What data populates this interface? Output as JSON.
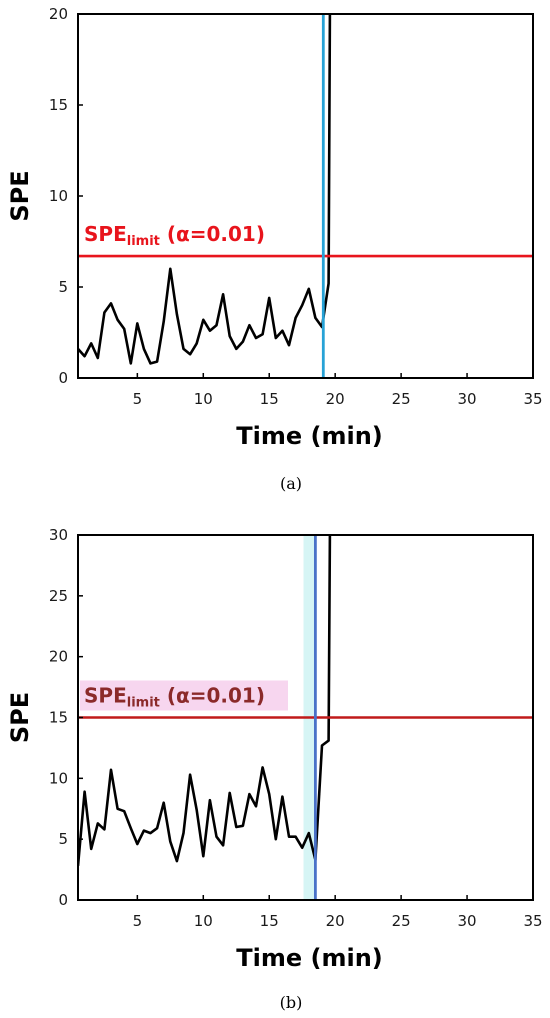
{
  "chart_data": [
    {
      "type": "line",
      "panel_label": "(a)",
      "xlabel": "Time  (min)",
      "ylabel": "SPE",
      "xlim": [
        0.5,
        35
      ],
      "ylim": [
        0,
        20
      ],
      "xticks": [
        5,
        10,
        15,
        20,
        25,
        30,
        35
      ],
      "yticks": [
        0,
        5,
        10,
        15,
        20
      ],
      "limit": {
        "value": 6.7,
        "label_main": "SPE",
        "label_sub": "limit",
        "label_suffix": " (α=0.01)",
        "color": "#e8141c",
        "label_color": "#e8141c",
        "highlight": ""
      },
      "fault_time": {
        "x": 19.1,
        "color": "#27a2d6",
        "band": null
      },
      "series": [
        {
          "color": "#000000",
          "x": [
            0.5,
            1.0,
            1.5,
            2.0,
            2.5,
            3.0,
            3.5,
            4.0,
            4.5,
            5.0,
            5.5,
            6.0,
            6.5,
            7.0,
            7.5,
            8.0,
            8.5,
            9.0,
            9.5,
            10.0,
            10.5,
            11.0,
            11.5,
            12.0,
            12.5,
            13.0,
            13.5,
            14.0,
            14.5,
            15.0,
            15.5,
            16.0,
            16.5,
            17.0,
            17.5,
            18.0,
            18.5,
            19.0,
            19.5,
            19.6
          ],
          "y": [
            1.6,
            1.2,
            1.9,
            1.1,
            3.6,
            4.1,
            3.2,
            2.7,
            0.8,
            3.0,
            1.6,
            0.8,
            0.9,
            3.1,
            6.0,
            3.5,
            1.6,
            1.3,
            1.9,
            3.2,
            2.6,
            2.9,
            4.6,
            2.3,
            1.6,
            2.0,
            2.9,
            2.2,
            2.4,
            4.4,
            2.2,
            2.6,
            1.8,
            3.3,
            4.0,
            4.9,
            3.3,
            2.8,
            5.2,
            20
          ]
        }
      ]
    },
    {
      "type": "line",
      "panel_label": "(b)",
      "xlabel": "Time  (min)",
      "ylabel": "SPE",
      "xlim": [
        0.5,
        35
      ],
      "ylim": [
        0,
        30
      ],
      "xticks": [
        5,
        10,
        15,
        20,
        25,
        30,
        35
      ],
      "yticks": [
        0,
        5,
        10,
        15,
        20,
        25,
        30
      ],
      "limit": {
        "value": 15,
        "label_main": "SPE",
        "label_sub": "limit",
        "label_suffix": " (α=0.01)",
        "color": "#c01a1a",
        "label_color": "#8b2a2a",
        "highlight": "#f7d6ef"
      },
      "fault_time": {
        "x": 18.5,
        "color": "#4a72c8",
        "band": [
          17.6,
          18.5
        ],
        "band_color": "#d6f5f5"
      },
      "series": [
        {
          "color": "#000000",
          "x": [
            0.5,
            1.0,
            1.5,
            2.0,
            2.5,
            3.0,
            3.5,
            4.0,
            4.5,
            5.0,
            5.5,
            6.0,
            6.5,
            7.0,
            7.5,
            8.0,
            8.5,
            9.0,
            9.5,
            10.0,
            10.5,
            11.0,
            11.5,
            12.0,
            12.5,
            13.0,
            13.5,
            14.0,
            14.5,
            15.0,
            15.5,
            16.0,
            16.5,
            17.0,
            17.5,
            18.0,
            18.5,
            19.0,
            19.5,
            19.6
          ],
          "y": [
            2.8,
            8.9,
            4.2,
            6.3,
            5.8,
            10.7,
            7.5,
            7.3,
            5.9,
            4.6,
            5.7,
            5.5,
            5.9,
            8.0,
            4.8,
            3.2,
            5.5,
            10.3,
            7.4,
            3.6,
            8.2,
            5.2,
            4.5,
            8.8,
            6.0,
            6.1,
            8.7,
            7.7,
            10.9,
            8.7,
            5.0,
            8.5,
            5.2,
            5.2,
            4.3,
            5.5,
            3.3,
            12.7,
            13.1,
            30
          ]
        }
      ]
    }
  ]
}
